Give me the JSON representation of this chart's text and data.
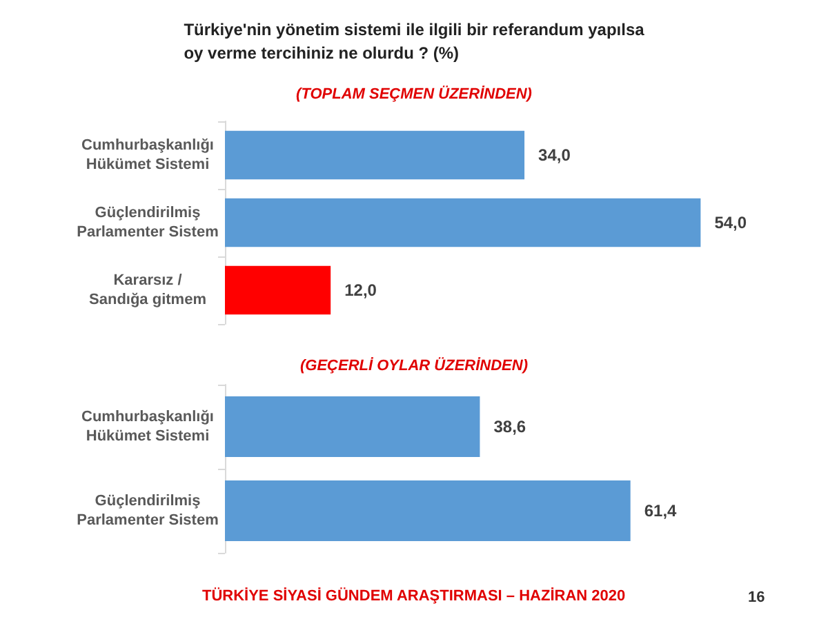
{
  "chart_data": [
    {
      "type": "bar",
      "orientation": "horizontal",
      "title": "Türkiye'nin yönetim sistemi ile ilgili bir referandum yapılsa\noy verme tercihiniz ne olurdu ? (%)",
      "subtitle": "(TOPLAM SEÇMEN ÜZERİNDEN)",
      "categories": [
        "Cumhurbaşkanlığı\nHükümet Sistemi",
        "Güçlendirilmiş\nParlamenter Sistem",
        "Kararsız /\nSandığa gitmem"
      ],
      "values": [
        34.0,
        54.0,
        12.0
      ],
      "colors": [
        "#5b9bd5",
        "#5b9bd5",
        "#ff0000"
      ],
      "value_labels": [
        "34,0",
        "54,0",
        "12,0"
      ]
    },
    {
      "type": "bar",
      "orientation": "horizontal",
      "subtitle": "(GEÇERLİ OYLAR ÜZERİNDEN)",
      "categories": [
        "Cumhurbaşkanlığı\nHükümet Sistemi",
        "Güçlendirilmiş\nParlamenter Sistem"
      ],
      "values": [
        38.6,
        61.4
      ],
      "colors": [
        "#5b9bd5",
        "#5b9bd5"
      ],
      "value_labels": [
        "38,6",
        "61,4"
      ],
      "annotations": [
        "TÜRKİYE SİYASİ GÜNDEM ARAŞTIRMASI – HAZİRAN 2020",
        "16"
      ]
    }
  ]
}
